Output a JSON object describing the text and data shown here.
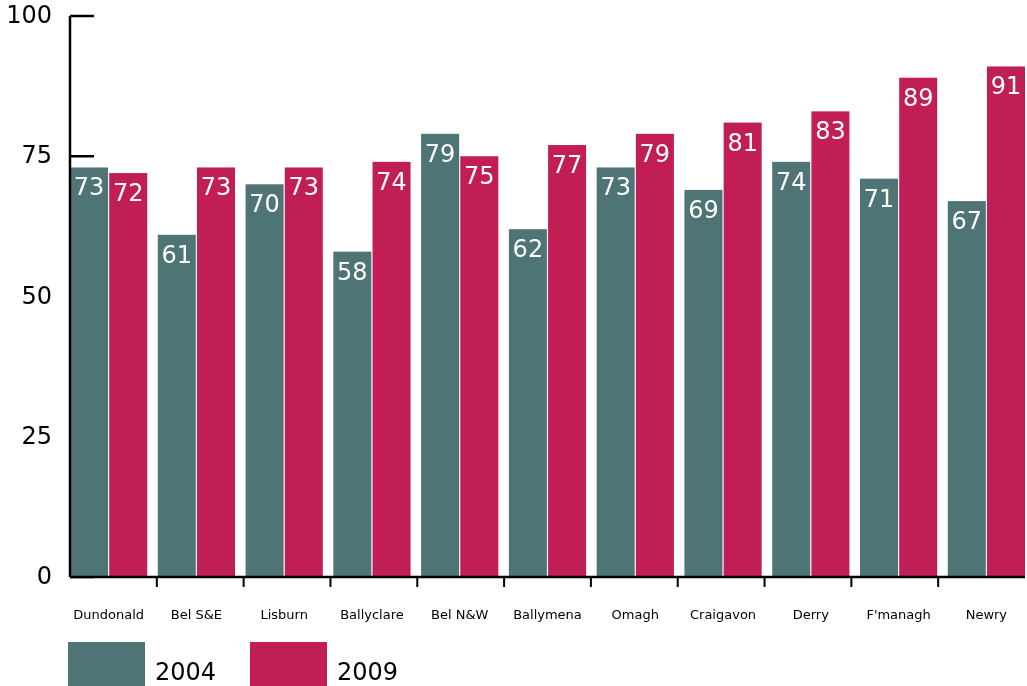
{
  "chart_data": {
    "type": "bar",
    "categories": [
      "Dundonald",
      "Bel S&E",
      "Lisburn",
      "Ballyclare",
      "Bel N&W",
      "Ballymena",
      "Omagh",
      "Craigavon",
      "Derry",
      "F'managh",
      "Newry"
    ],
    "series": [
      {
        "name": "2004",
        "color": "#4e7475",
        "values": [
          73,
          61,
          70,
          58,
          79,
          62,
          73,
          69,
          74,
          71,
          67
        ]
      },
      {
        "name": "2009",
        "color": "#c01e55",
        "values": [
          72,
          73,
          73,
          74,
          75,
          77,
          79,
          81,
          83,
          89,
          91
        ]
      }
    ],
    "ylim": [
      0,
      100
    ],
    "yticks": [
      0,
      25,
      50,
      75,
      100
    ],
    "data_labels": true,
    "legend": "bottom left",
    "grid": false
  }
}
